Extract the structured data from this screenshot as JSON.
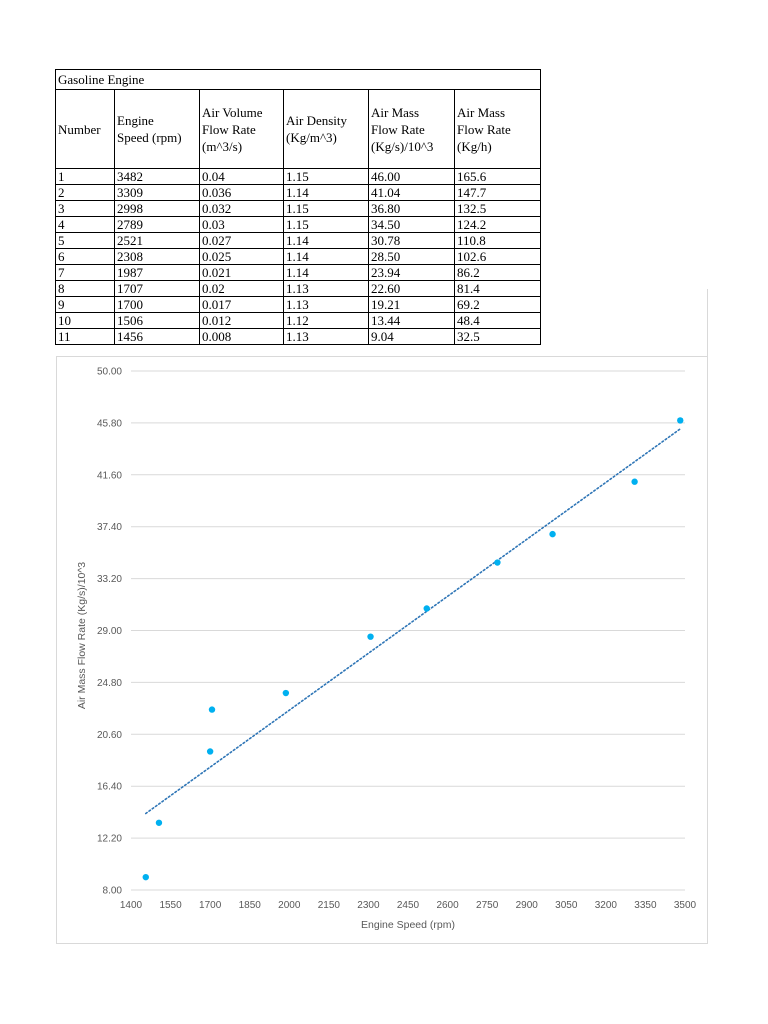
{
  "table": {
    "title": "Gasoline Engine",
    "headers": [
      [
        "Number"
      ],
      [
        "Engine",
        "Speed (rpm)"
      ],
      [
        "Air Volume",
        "Flow Rate",
        "(m^3/s)"
      ],
      [
        "Air Density",
        "(Kg/m^3)"
      ],
      [
        "Air Mass",
        "Flow Rate",
        "(Kg/s)/10^3"
      ],
      [
        "Air Mass",
        "Flow Rate",
        "(Kg/h)"
      ]
    ],
    "rows": [
      [
        "1",
        "3482",
        "0.04",
        "1.15",
        "46.00",
        "165.6"
      ],
      [
        "2",
        "3309",
        "0.036",
        "1.14",
        "41.04",
        "147.7"
      ],
      [
        "3",
        "2998",
        "0.032",
        "1.15",
        "36.80",
        "132.5"
      ],
      [
        "4",
        "2789",
        "0.03",
        "1.15",
        "34.50",
        "124.2"
      ],
      [
        "5",
        "2521",
        "0.027",
        "1.14",
        "30.78",
        "110.8"
      ],
      [
        "6",
        "2308",
        "0.025",
        "1.14",
        "28.50",
        "102.6"
      ],
      [
        "7",
        "1987",
        "0.021",
        "1.14",
        "23.94",
        "86.2"
      ],
      [
        "8",
        "1707",
        "0.02",
        "1.13",
        "22.60",
        "81.4"
      ],
      [
        "9",
        "1700",
        "0.017",
        "1.13",
        "19.21",
        "69.2"
      ],
      [
        "10",
        "1506",
        "0.012",
        "1.12",
        "13.44",
        "48.4"
      ],
      [
        "11",
        "1456",
        "0.008",
        "1.13",
        "9.04",
        "32.5"
      ]
    ]
  },
  "chart_data": {
    "type": "scatter",
    "xlabel": "Engine Speed (rpm)",
    "ylabel": "Air Mass Flow Rate (Kg/s)/10^3",
    "xlim": [
      1400,
      3500
    ],
    "ylim": [
      8.0,
      50.0
    ],
    "x_ticks": [
      1400,
      1550,
      1700,
      1850,
      2000,
      2150,
      2300,
      2450,
      2600,
      2750,
      2900,
      3050,
      3200,
      3350,
      3500
    ],
    "y_ticks": [
      "8.00",
      "12.20",
      "16.40",
      "20.60",
      "24.80",
      "29.00",
      "33.20",
      "37.40",
      "41.60",
      "45.80",
      "50.00"
    ],
    "grid": "horizontal",
    "marker_color": "#00b0f0",
    "trendline": {
      "type": "linear",
      "style": "dotted",
      "color": "#2e75b6"
    },
    "series": [
      {
        "x": [
          3482,
          3309,
          2998,
          2789,
          2521,
          2308,
          1987,
          1707,
          1700,
          1506,
          1456
        ],
        "y": [
          46.0,
          41.04,
          36.8,
          34.5,
          30.78,
          28.5,
          23.94,
          22.6,
          19.21,
          13.44,
          9.04
        ]
      }
    ]
  }
}
